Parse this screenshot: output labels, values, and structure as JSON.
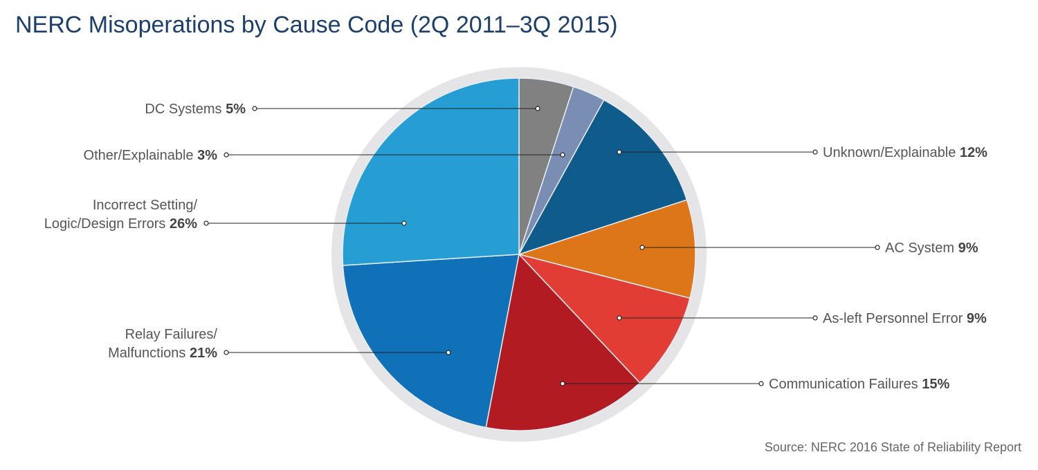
{
  "chart_data": {
    "type": "pie",
    "title": "NERC Misoperations by Cause Code (2Q 2011–3Q 2015)",
    "source": "Source: NERC 2016 State of Reliability Report",
    "slices": [
      {
        "label": "DC Systems",
        "lines": [
          "DC Systems"
        ],
        "value": 5,
        "pct_label": "5%",
        "color": "#818181"
      },
      {
        "label": "Other/Explainable",
        "lines": [
          "Other/Explainable"
        ],
        "value": 3,
        "pct_label": "3%",
        "color": "#7a8db2"
      },
      {
        "label": "Unknown/Explainable",
        "lines": [
          "Unknown/Explainable"
        ],
        "value": 12,
        "pct_label": "12%",
        "color": "#0e5b8c"
      },
      {
        "label": "AC System",
        "lines": [
          "AC System"
        ],
        "value": 9,
        "pct_label": "9%",
        "color": "#dd7519"
      },
      {
        "label": "As-left Personnel Error",
        "lines": [
          "As-left Personnel Error"
        ],
        "value": 9,
        "pct_label": "9%",
        "color": "#e23d34"
      },
      {
        "label": "Communication Failures",
        "lines": [
          "Communication Failures"
        ],
        "value": 15,
        "pct_label": "15%",
        "color": "#b21b21"
      },
      {
        "label": "Relay Failures/ Malfunctions",
        "lines": [
          "Relay Failures/",
          "Malfunctions"
        ],
        "value": 21,
        "pct_label": "21%",
        "color": "#1071b8"
      },
      {
        "label": "Incorrect Setting/ Logic/Design Errors",
        "lines": [
          "Incorrect Setting/",
          "Logic/Design Errors"
        ],
        "value": 26,
        "pct_label": "26%",
        "color": "#269ed4"
      }
    ]
  }
}
